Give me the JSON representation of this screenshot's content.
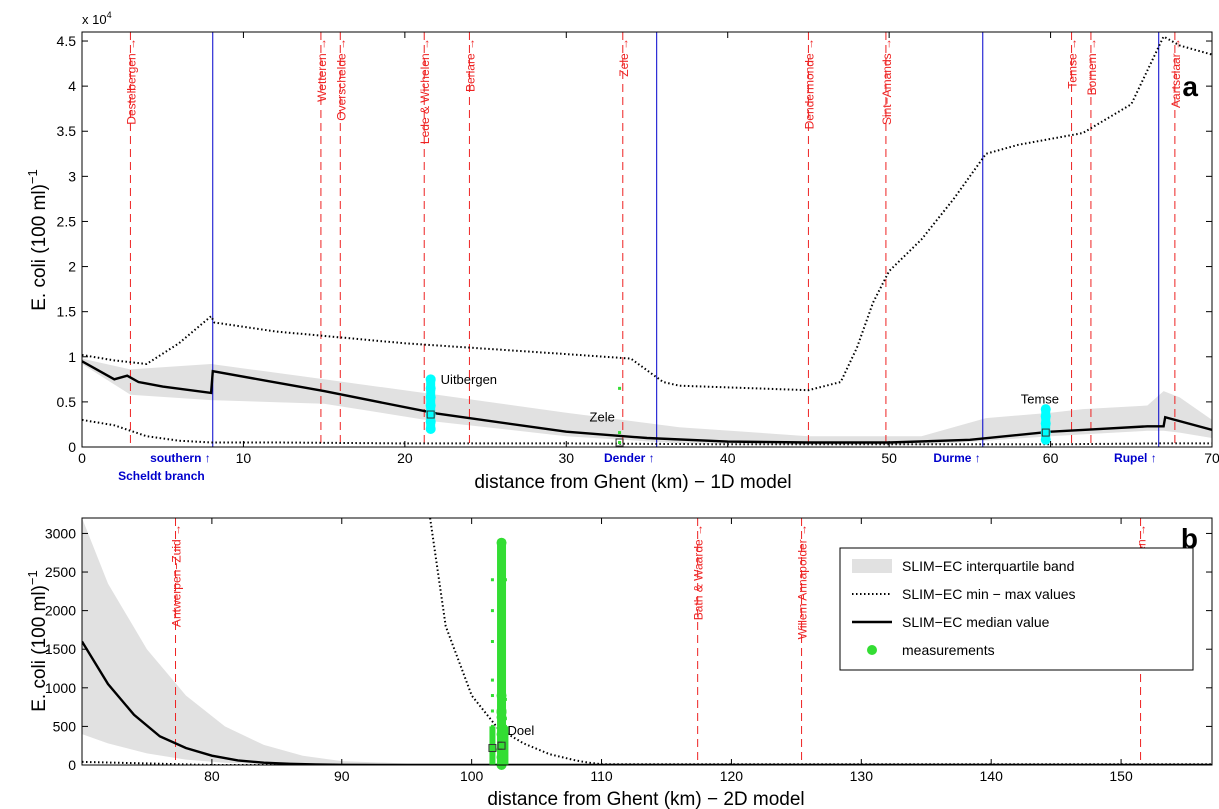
{
  "chart_data": [
    {
      "panel_label": "a",
      "type": "line",
      "xlabel": "distance from Ghent (km) − 1D model",
      "ylabel": "E. coli (100 ml)",
      "ylabel_exponent": "−1",
      "y_multiplier_label": "x 10",
      "y_multiplier_exponent": "4",
      "xlim": [
        0,
        70
      ],
      "ylim": [
        0,
        4.6
      ],
      "xticks": [
        "0",
        "10",
        "20",
        "30",
        "40",
        "50",
        "60",
        "70"
      ],
      "yticks": [
        "0",
        "0.5",
        "1",
        "1.5",
        "2",
        "2.5",
        "3",
        "3.5",
        "4",
        "4.5"
      ],
      "colors": {
        "band": "#e1e1e1",
        "line": "#000000",
        "measure": "#00ffff",
        "measure_zele": "#33dd33",
        "town": "#ee2222",
        "tributary": "#0000cc"
      },
      "band": {
        "x": [
          0,
          3,
          8,
          15,
          22,
          30,
          37,
          45,
          52,
          56,
          60,
          62,
          66,
          67,
          68,
          70
        ],
        "upper": [
          0.98,
          0.86,
          0.92,
          0.75,
          0.58,
          0.38,
          0.22,
          0.12,
          0.12,
          0.32,
          0.38,
          0.42,
          0.46,
          0.62,
          0.55,
          0.3
        ],
        "lower": [
          0.92,
          0.58,
          0.52,
          0.48,
          0.28,
          0.12,
          0.04,
          0.02,
          0.02,
          0.07,
          0.12,
          0.14,
          0.18,
          0.18,
          0.16,
          0.1
        ]
      },
      "series": [
        {
          "name": "SLIM−EC median value",
          "style": "solid",
          "x": [
            0,
            2,
            2.8,
            3.5,
            5,
            8,
            8.1,
            15,
            22,
            30,
            35,
            40,
            45,
            50,
            55,
            60,
            62,
            66,
            67,
            67.1,
            70
          ],
          "y": [
            0.95,
            0.75,
            0.79,
            0.72,
            0.67,
            0.6,
            0.84,
            0.62,
            0.37,
            0.17,
            0.1,
            0.06,
            0.05,
            0.05,
            0.08,
            0.17,
            0.19,
            0.23,
            0.23,
            0.33,
            0.19
          ]
        },
        {
          "name": "SLIM−EC max values",
          "style": "dotted",
          "x": [
            0,
            2,
            4,
            6,
            8,
            8.2,
            12,
            20,
            30,
            34,
            35,
            36,
            37,
            45,
            47,
            48,
            49,
            50,
            52,
            54,
            55,
            56,
            58,
            62,
            65,
            67,
            68,
            70
          ],
          "y": [
            1.02,
            0.96,
            0.92,
            1.15,
            1.45,
            1.38,
            1.28,
            1.15,
            1.03,
            0.98,
            0.85,
            0.72,
            0.68,
            0.63,
            0.72,
            1.1,
            1.6,
            1.95,
            2.3,
            2.75,
            3.0,
            3.25,
            3.35,
            3.48,
            3.8,
            4.55,
            4.45,
            4.35
          ]
        },
        {
          "name": "SLIM−EC min values",
          "style": "dotted",
          "x": [
            0,
            2,
            4,
            6,
            8,
            12,
            20,
            30,
            40,
            50,
            60,
            67,
            70
          ],
          "y": [
            0.3,
            0.24,
            0.12,
            0.07,
            0.05,
            0.05,
            0.04,
            0.04,
            0.03,
            0.03,
            0.03,
            0.04,
            0.04
          ]
        }
      ],
      "measurements": [
        {
          "site": "Uitbergen",
          "x": 21.6,
          "y": [
            0.75,
            0.65,
            0.55,
            0.46,
            0.36,
            0.28,
            0.2
          ],
          "median": 0.36
        },
        {
          "site": "Temse",
          "x": 59.7,
          "y": [
            0.42,
            0.34,
            0.26,
            0.16,
            0.08
          ],
          "median": 0.16
        },
        {
          "site": "Zele",
          "x": 33.3,
          "y": [
            0.65,
            0.16,
            0.05
          ],
          "median": 0.05
        }
      ],
      "towns": [
        {
          "label": "Destelbergen",
          "x": 3
        },
        {
          "label": "Wetteren",
          "x": 14.8
        },
        {
          "label": "Overschelde",
          "x": 16
        },
        {
          "label": "Lede & Wichelen",
          "x": 21.2
        },
        {
          "label": "Berlare",
          "x": 24
        },
        {
          "label": "Zele",
          "x": 33.5
        },
        {
          "label": "Dendermonde",
          "x": 45
        },
        {
          "label": "Sint−Amands",
          "x": 49.8
        },
        {
          "label": "Temse",
          "x": 61.3
        },
        {
          "label": "Bornem",
          "x": 62.5
        },
        {
          "label": "Aartselaar",
          "x": 67.7
        }
      ],
      "tributaries": [
        {
          "label": "southern",
          "label2": "Scheldt branch",
          "x": 8.1
        },
        {
          "label": "Dender",
          "x": 35.6
        },
        {
          "label": "Durme",
          "x": 55.8
        },
        {
          "label": "Rupel",
          "x": 66.7
        }
      ]
    },
    {
      "panel_label": "b",
      "type": "line",
      "xlabel": "distance from Ghent (km) − 2D model",
      "ylabel": "E. coli (100 ml)",
      "ylabel_exponent": "−1",
      "xlim": [
        70,
        157
      ],
      "ylim": [
        0,
        3200
      ],
      "xticks": [
        "80",
        "90",
        "100",
        "110",
        "120",
        "130",
        "140",
        "150"
      ],
      "yticks": [
        "0",
        "500",
        "1000",
        "1500",
        "2000",
        "2500",
        "3000"
      ],
      "band": {
        "x": [
          70,
          72,
          75,
          78,
          81,
          84,
          87,
          90,
          95,
          157
        ],
        "upper": [
          3200,
          2350,
          1500,
          900,
          500,
          260,
          120,
          50,
          20,
          10
        ],
        "lower": [
          400,
          280,
          150,
          70,
          30,
          12,
          5,
          0,
          0,
          0
        ]
      },
      "series": [
        {
          "name": "SLIM−EC median value",
          "style": "solid",
          "x": [
            70,
            72,
            74,
            76,
            78,
            80,
            82,
            84,
            86,
            88,
            90,
            95,
            157
          ],
          "y": [
            1600,
            1050,
            650,
            370,
            220,
            120,
            60,
            30,
            15,
            8,
            3,
            0,
            0
          ]
        },
        {
          "name": "SLIM−EC max values",
          "style": "dotted",
          "x": [
            96.8,
            98,
            100,
            102,
            104,
            106,
            108,
            109,
            110,
            157
          ],
          "y": [
            3200,
            1800,
            900,
            480,
            280,
            140,
            60,
            30,
            10,
            10
          ]
        },
        {
          "name": "SLIM−EC min values",
          "style": "dotted",
          "x": [
            70,
            80,
            157
          ],
          "y": [
            40,
            0,
            0
          ]
        }
      ],
      "measurements": [
        {
          "site": "Doel",
          "x": 102.3,
          "y": [
            2880,
            900,
            700,
            680,
            620,
            400,
            200,
            100,
            0
          ],
          "median": 250
        }
      ],
      "measurements_small": [
        {
          "x": 101.6,
          "y": [
            2400,
            2000,
            1600,
            1100,
            900,
            700,
            500,
            400,
            300,
            200,
            100
          ]
        },
        {
          "x": 102.6,
          "y": [
            2400,
            850,
            600,
            500,
            300,
            100
          ]
        }
      ],
      "median_markers": [
        {
          "x": 101.6,
          "y": 220
        },
        {
          "x": 102.3,
          "y": 250
        }
      ],
      "towns": [
        {
          "label": "Antwerpen−Zuid",
          "x": 77.2
        },
        {
          "label": "Bath & Waarde",
          "x": 117.4
        },
        {
          "label": "Willem Annapolder",
          "x": 125.4
        },
        {
          "label": "Walcheren",
          "x": 151.5
        }
      ],
      "legend": {
        "position": "top-right",
        "entries": [
          {
            "label": "SLIM−EC interquartile band",
            "symbol": "band"
          },
          {
            "label": "SLIM−EC min − max values",
            "symbol": "dotted"
          },
          {
            "label": "SLIM−EC median value",
            "symbol": "solid"
          },
          {
            "label": "measurements",
            "symbol": "dot"
          }
        ]
      }
    }
  ]
}
